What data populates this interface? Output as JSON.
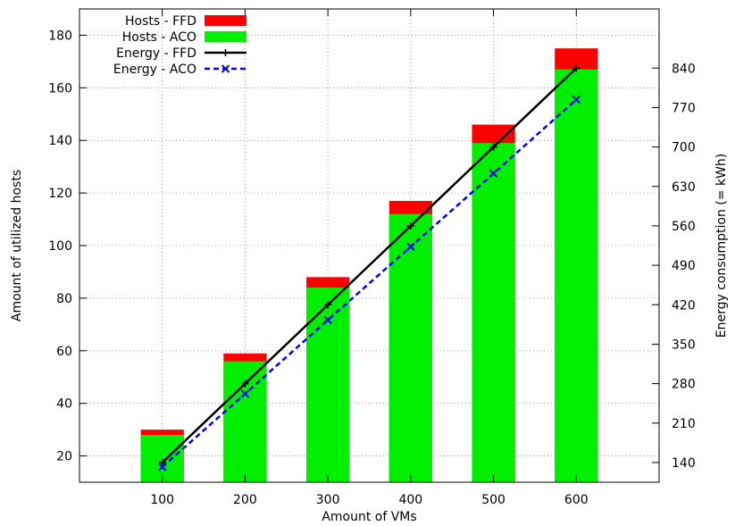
{
  "chart_data": {
    "type": "bar+line",
    "title": "",
    "xlabel": "Amount of VMs",
    "ylabel": "Amount of utilized hosts",
    "y2label": "Energy consumption (= kWh)",
    "categories": [
      "100",
      "200",
      "300",
      "400",
      "500",
      "600"
    ],
    "ylim": [
      10,
      190
    ],
    "y2lim": [
      105,
      945
    ],
    "yticks": [
      "20",
      "40",
      "60",
      "80",
      "100",
      "120",
      "140",
      "160",
      "180"
    ],
    "y2ticks": [
      "140",
      "210",
      "280",
      "350",
      "420",
      "490",
      "560",
      "630",
      "700",
      "770",
      "840"
    ],
    "grid": true,
    "legend_position": "top-left",
    "bars": [
      {
        "name": "Hosts - FFD",
        "color": "#ff0000",
        "values": [
          30,
          59,
          88,
          117,
          146,
          175
        ]
      },
      {
        "name": "Hosts - ACO",
        "color": "#00ee00",
        "values": [
          28,
          56,
          84,
          112,
          139,
          167
        ]
      }
    ],
    "lines": [
      {
        "name": "Energy - FFD",
        "color": "#000000",
        "axis": "right",
        "marker": "plus",
        "dash": "solid",
        "values": [
          140,
          280,
          420,
          560,
          700,
          840
        ]
      },
      {
        "name": "Energy - ACO",
        "color": "#0000ff",
        "axis": "right",
        "marker": "cross",
        "dash": "dashed",
        "values": [
          132,
          262,
          393,
          523,
          653,
          784
        ]
      }
    ]
  }
}
